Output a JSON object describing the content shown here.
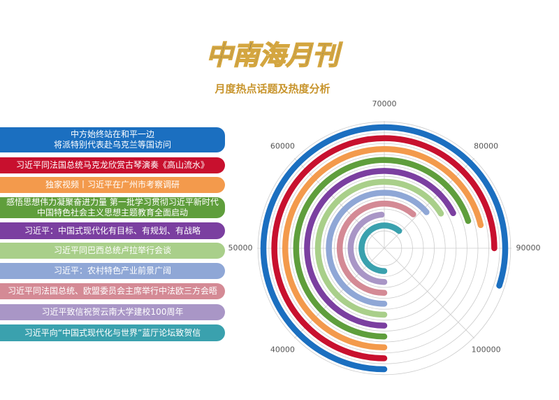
{
  "chart_data": {
    "type": "radial-bar",
    "title": "中南海月刊",
    "subtitle": "月度热点话题及热度分析",
    "xlim": [
      30000,
      110000
    ],
    "xticks": [
      40000,
      50000,
      60000,
      70000,
      80000,
      90000,
      100000
    ],
    "series": [
      {
        "name": "中方始终站在和平一边\n将派特别代表赴乌克兰等国访问",
        "color": "#1b6fc0",
        "value": 94000
      },
      {
        "name": "习近平同法国总统马克龙欣赏古琴演奏《高山流水》",
        "color": "#c8102e",
        "value": 90000
      },
      {
        "name": "独家视频丨习近平在广州市考察调研",
        "color": "#f39a4c",
        "value": 87000
      },
      {
        "name": "感悟思想伟力凝聚奋进力量 第一批学习贯彻习近平新时代\n中国特色社会主义思想主题教育全面启动",
        "color": "#5f9e3c",
        "value": 86000
      },
      {
        "name": "习近平：中国式现代化有目标、有规划、有战略",
        "color": "#7b3fa0",
        "value": 84000
      },
      {
        "name": "习近平同巴西总统卢拉举行会谈",
        "color": "#a9cf8a",
        "value": 83000
      },
      {
        "name": "习近平：农村特色产业前景广阔",
        "color": "#8fa7d6",
        "value": 81000
      },
      {
        "name": "习近平同法国总统、欧盟委员会主席举行中法欧三方会晤",
        "color": "#d48a95",
        "value": 79000
      },
      {
        "name": "习近平致信祝贺云南大学建校100周年",
        "color": "#a996c6",
        "value": 69000
      },
      {
        "name": "习近平向“中国式现代化与世界”蓝厅论坛致贺信",
        "color": "#3aa1ae",
        "value": 79000
      }
    ]
  }
}
